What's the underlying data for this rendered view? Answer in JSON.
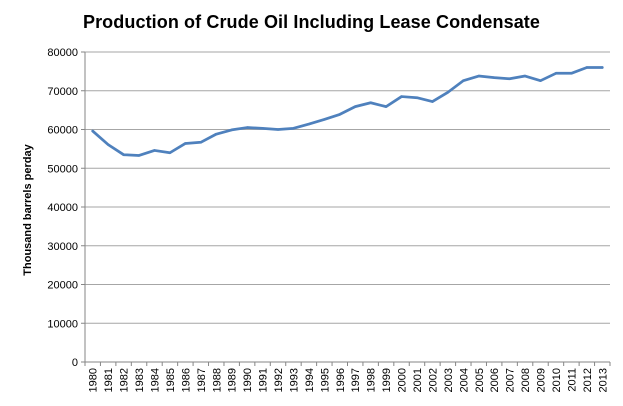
{
  "chart_data": {
    "type": "line",
    "title": "Production  of Crude  Oil Including  Lease Condensate",
    "xlabel": "",
    "ylabel": "Thousand  barrels perday",
    "ylim": [
      0,
      80000
    ],
    "yticks": [
      0,
      10000,
      20000,
      30000,
      40000,
      50000,
      60000,
      70000,
      80000
    ],
    "grid": true,
    "legend": "none",
    "line_color": "#4f81bd",
    "grid_color": "#a6a6a6",
    "categories": [
      "1980",
      "1981",
      "1982",
      "1983",
      "1984",
      "1985",
      "1986",
      "1987",
      "1988",
      "1989",
      "1990",
      "1991",
      "1992",
      "1993",
      "1994",
      "1995",
      "1996",
      "1997",
      "1998",
      "1999",
      "2000",
      "2001",
      "2002",
      "2003",
      "2004",
      "2005",
      "2006",
      "2007",
      "2008",
      "2009",
      "2010",
      "2011",
      "2012",
      "2013"
    ],
    "series": [
      {
        "values": [
          59600,
          56100,
          53500,
          53300,
          54600,
          54000,
          56400,
          56700,
          58800,
          59900,
          60500,
          60300,
          60000,
          60300,
          61400,
          62600,
          63900,
          65900,
          66900,
          65900,
          68500,
          68200,
          67200,
          69600,
          72600,
          73800,
          73400,
          73100,
          73800,
          72600,
          74500,
          74500,
          76000,
          76000
        ]
      }
    ]
  }
}
